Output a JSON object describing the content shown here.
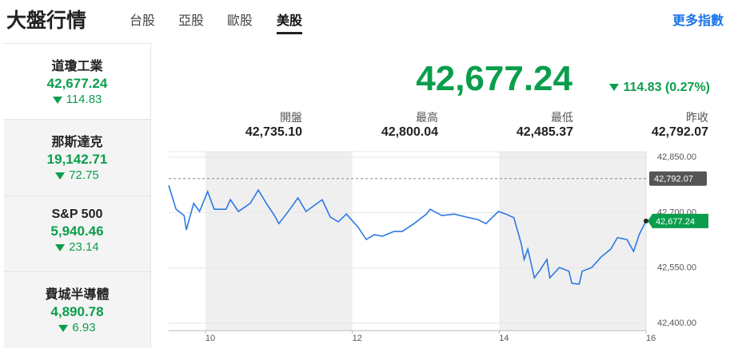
{
  "header": {
    "title": "大盤行情",
    "tabs": [
      "台股",
      "亞股",
      "歐股",
      "美股"
    ],
    "active_tab": 3,
    "more": "更多指數"
  },
  "indices": [
    {
      "name": "道瓊工業",
      "value": "42,677.24",
      "change": "114.83"
    },
    {
      "name": "那斯達克",
      "value": "19,142.71",
      "change": "72.75"
    },
    {
      "name": "S&P 500",
      "value": "5,940.46",
      "change": "23.14"
    },
    {
      "name": "費城半導體",
      "value": "4,890.78",
      "change": "6.93"
    }
  ],
  "active_index": 0,
  "main": {
    "price": "42,677.24",
    "change": "114.83 (0.27%)"
  },
  "stats": [
    {
      "label": "開盤",
      "value": "42,735.10"
    },
    {
      "label": "最高",
      "value": "42,800.04"
    },
    {
      "label": "最低",
      "value": "42,485.37"
    },
    {
      "label": "昨收",
      "value": "42,792.07"
    }
  ],
  "chart_data": {
    "type": "line",
    "color": "#2b78e4",
    "x": [
      9.5,
      9.6,
      9.71,
      9.74,
      9.84,
      9.92,
      10.03,
      10.12,
      10.28,
      10.34,
      10.45,
      10.61,
      10.72,
      10.83,
      10.94,
      11.0,
      11.15,
      11.26,
      11.37,
      11.59,
      11.7,
      11.81,
      11.92,
      12.08,
      12.19,
      12.3,
      12.41,
      12.57,
      12.68,
      12.84,
      13.01,
      13.06,
      13.22,
      13.39,
      13.55,
      13.71,
      13.82,
      13.99,
      14.09,
      14.2,
      14.3,
      14.34,
      14.39,
      14.48,
      14.56,
      14.65,
      14.69,
      14.82,
      14.95,
      14.99,
      15.09,
      15.13,
      15.26,
      15.39,
      15.52,
      15.61,
      15.74,
      15.83,
      15.91,
      16.0
    ],
    "series": [
      {
        "name": "道瓊工業",
        "color": "#2b78e4",
        "values": [
          42774,
          42709,
          42692,
          42653,
          42725,
          42703,
          42757,
          42709,
          42709,
          42735,
          42703,
          42725,
          42761,
          42725,
          42692,
          42670,
          42709,
          42740,
          42703,
          42735,
          42688,
          42675,
          42696,
          42660,
          42627,
          42640,
          42636,
          42649,
          42649,
          42670,
          42696,
          42709,
          42692,
          42696,
          42688,
          42681,
          42670,
          42703,
          42696,
          42686,
          42616,
          42573,
          42601,
          42523,
          42545,
          42573,
          42523,
          42551,
          42541,
          42508,
          42506,
          42541,
          42551,
          42580,
          42601,
          42632,
          42627,
          42595,
          42642,
          42677.24
        ]
      }
    ],
    "xlim": [
      9.5,
      16
    ],
    "xticks": [
      10,
      12,
      14,
      16
    ],
    "ylim": [
      42380,
      42870
    ],
    "yticks": [
      {
        "value": 42400,
        "label": "42,400.00"
      },
      {
        "value": 42550,
        "label": "42,550.00"
      },
      {
        "value": 42700,
        "label": "42,700.00"
      },
      {
        "value": 42850,
        "label": "42,850.00"
      }
    ],
    "reference_line": {
      "value": 42792.07,
      "label": "42,792.07"
    },
    "current_label": "42,677.24"
  }
}
